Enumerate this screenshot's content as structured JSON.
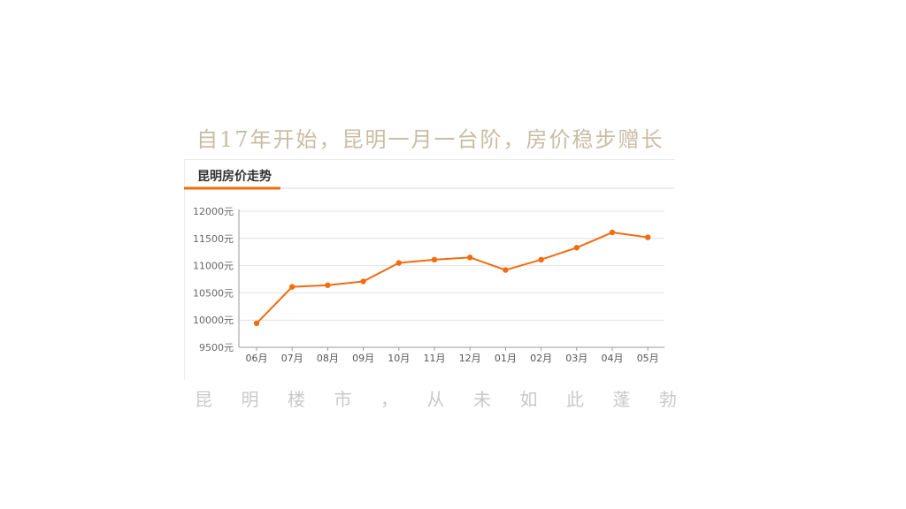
{
  "headline": "自17年开始，昆明一月一台阶，房价稳步赠长",
  "panel": {
    "tab_label": "昆明房价走势"
  },
  "footer_chars": [
    "昆",
    "明",
    "楼",
    "市",
    "，",
    "从",
    "未",
    "如",
    "此",
    "蓬",
    "勃"
  ],
  "colors": {
    "line": "#f26b0f",
    "accent": "#f26b0f",
    "grid": "#e2e2e2",
    "axis": "#999999"
  },
  "chart_data": {
    "type": "line",
    "title": "",
    "xlabel": "",
    "ylabel": "",
    "categories": [
      "06月",
      "07月",
      "08月",
      "09月",
      "10月",
      "11月",
      "12月",
      "01月",
      "02月",
      "03月",
      "04月",
      "05月"
    ],
    "series": [
      {
        "values": [
          9940,
          10610,
          10640,
          10710,
          11050,
          11110,
          11150,
          10920,
          11110,
          11330,
          11610,
          11520
        ]
      }
    ],
    "y_ticks": [
      "12000元",
      "11500元",
      "11000元",
      "10500元",
      "10000元",
      "9500元"
    ],
    "ylim": [
      9500,
      12000
    ],
    "grid": true,
    "legend": "none"
  }
}
